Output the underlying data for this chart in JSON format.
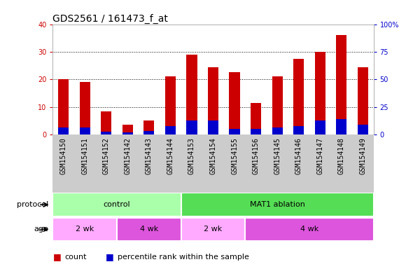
{
  "title": "GDS2561 / 161473_f_at",
  "categories": [
    "GSM154150",
    "GSM154151",
    "GSM154152",
    "GSM154142",
    "GSM154143",
    "GSM154144",
    "GSM154153",
    "GSM154154",
    "GSM154155",
    "GSM154156",
    "GSM154145",
    "GSM154146",
    "GSM154147",
    "GSM154148",
    "GSM154149"
  ],
  "count_values": [
    20,
    19,
    8.5,
    3.5,
    5,
    21,
    29,
    24.5,
    22.5,
    11.5,
    21,
    27.5,
    30,
    36,
    24.5
  ],
  "percentile_values": [
    2.5,
    2.5,
    1.0,
    0.8,
    1.2,
    3.0,
    5.0,
    5.0,
    2.0,
    2.0,
    2.5,
    3.0,
    5.0,
    5.5,
    3.5
  ],
  "bar_color_red": "#cc0000",
  "bar_color_blue": "#0000cc",
  "left_ylim": [
    0,
    40
  ],
  "right_ylim": [
    0,
    100
  ],
  "left_yticks": [
    0,
    10,
    20,
    30,
    40
  ],
  "right_yticks": [
    0,
    25,
    50,
    75,
    100
  ],
  "right_yticklabels": [
    "0",
    "25",
    "50",
    "75",
    "100%"
  ],
  "left_ylabel_color": "#cc0000",
  "right_ylabel_color": "#0000cc",
  "protocol_label": "protocol",
  "age_label": "age",
  "protocol_groups": [
    {
      "label": "control",
      "start": 0,
      "end": 6,
      "color": "#aaffaa"
    },
    {
      "label": "MAT1 ablation",
      "start": 6,
      "end": 15,
      "color": "#55dd55"
    }
  ],
  "age_groups": [
    {
      "label": "2 wk",
      "start": 0,
      "end": 3,
      "color": "#ffaaff"
    },
    {
      "label": "4 wk",
      "start": 3,
      "end": 6,
      "color": "#dd55dd"
    },
    {
      "label": "2 wk",
      "start": 6,
      "end": 9,
      "color": "#ffaaff"
    },
    {
      "label": "4 wk",
      "start": 9,
      "end": 15,
      "color": "#dd55dd"
    }
  ],
  "legend_items": [
    {
      "label": "count",
      "color": "#cc0000"
    },
    {
      "label": "percentile rank within the sample",
      "color": "#0000cc"
    }
  ],
  "bar_width": 0.5,
  "title_fontsize": 10,
  "tick_fontsize": 7,
  "label_fontsize": 8,
  "legend_fontsize": 8,
  "xlabel_bg_color": "#cccccc"
}
